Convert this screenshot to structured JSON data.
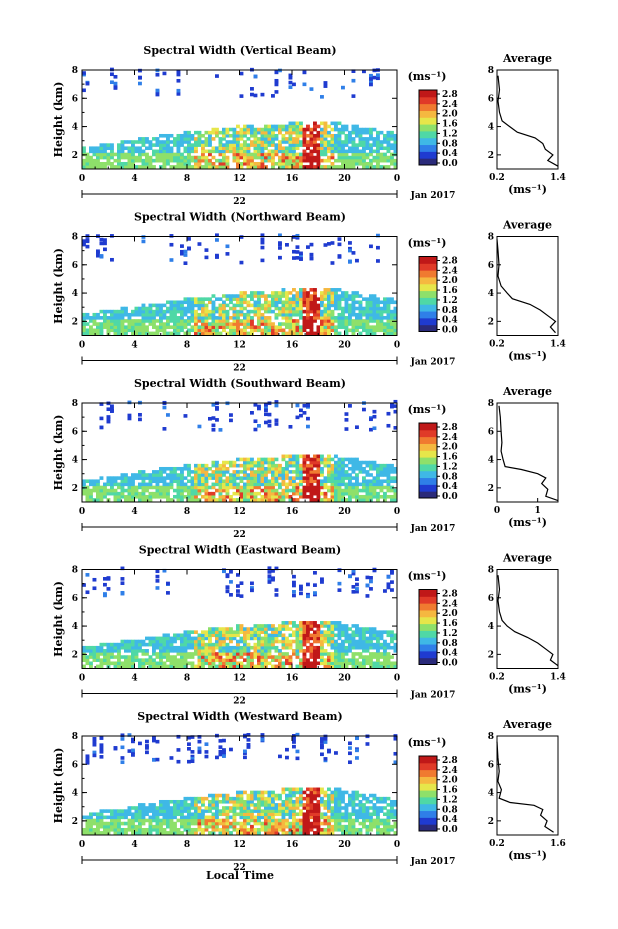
{
  "figure": {
    "xlabel_bottom": "Local Time",
    "date_label": "Jan 2017",
    "day_label": "22",
    "colorbar_title": "(ms⁻¹)",
    "colorbar_ticks": [
      "2.8",
      "2.4",
      "2.0",
      "1.6",
      "1.2",
      "0.8",
      "0.4",
      "0.0"
    ],
    "colors": {
      "scale": [
        "#2a2a7a",
        "#1f3bd0",
        "#2f7fe8",
        "#3fb8e6",
        "#4fd8a6",
        "#8ee06a",
        "#e6e64a",
        "#f5b840",
        "#f07a30",
        "#e03a28",
        "#c01818"
      ]
    }
  },
  "chart_data": [
    {
      "type": "heatmap",
      "title": "Spectral Width (Vertical Beam)",
      "ylabel": "Height (km)",
      "x_ticks": [
        "0",
        "4",
        "8",
        "12",
        "16",
        "20",
        "0"
      ],
      "xlim": [
        0,
        24
      ],
      "y_ticks": [
        "2",
        "4",
        "6",
        "8"
      ],
      "ylim": [
        1,
        8
      ],
      "profile": {
        "title": "Average",
        "xlabel": "(ms⁻¹)",
        "x_ticks": [
          "0.2",
          "1.4"
        ],
        "xlim": [
          0.2,
          1.4
        ],
        "y_ticks": [
          "2",
          "4",
          "6",
          "8"
        ],
        "ylim": [
          1,
          8
        ],
        "points": [
          [
            1.4,
            1.2
          ],
          [
            1.2,
            1.6
          ],
          [
            1.3,
            2.0
          ],
          [
            1.15,
            2.4
          ],
          [
            1.1,
            2.8
          ],
          [
            0.95,
            3.2
          ],
          [
            0.6,
            3.6
          ],
          [
            0.45,
            4.0
          ],
          [
            0.3,
            4.4
          ],
          [
            0.25,
            5.0
          ],
          [
            0.22,
            5.8
          ],
          [
            0.25,
            6.6
          ],
          [
            0.22,
            7.6
          ]
        ]
      }
    },
    {
      "type": "heatmap",
      "title": "Spectral Width (Northward Beam)",
      "ylabel": "Height (km)",
      "x_ticks": [
        "0",
        "4",
        "8",
        "12",
        "16",
        "20",
        "0"
      ],
      "xlim": [
        0,
        24
      ],
      "y_ticks": [
        "2",
        "4",
        "6",
        "8"
      ],
      "ylim": [
        1,
        8
      ],
      "profile": {
        "title": "Average",
        "xlabel": "(ms⁻¹)",
        "x_ticks": [
          "0.2",
          "1.4"
        ],
        "xlim": [
          0.2,
          1.4
        ],
        "y_ticks": [
          "2",
          "4",
          "6",
          "8"
        ],
        "ylim": [
          1,
          8
        ],
        "points": [
          [
            1.35,
            1.2
          ],
          [
            1.25,
            1.6
          ],
          [
            1.35,
            2.0
          ],
          [
            1.2,
            2.4
          ],
          [
            1.05,
            2.8
          ],
          [
            0.85,
            3.2
          ],
          [
            0.5,
            3.6
          ],
          [
            0.4,
            4.0
          ],
          [
            0.28,
            4.5
          ],
          [
            0.22,
            5.2
          ],
          [
            0.24,
            6.0
          ],
          [
            0.22,
            7.0
          ],
          [
            0.2,
            7.8
          ]
        ]
      }
    },
    {
      "type": "heatmap",
      "title": "Spectral Width (Southward Beam)",
      "ylabel": "Height (km)",
      "x_ticks": [
        "0",
        "4",
        "8",
        "12",
        "16",
        "20",
        "0"
      ],
      "xlim": [
        0,
        24
      ],
      "y_ticks": [
        "2",
        "4",
        "6",
        "8"
      ],
      "ylim": [
        1,
        8
      ],
      "profile": {
        "title": "Average",
        "xlabel": "(ms⁻¹)",
        "x_ticks": [
          "0",
          "1"
        ],
        "xlim": [
          0,
          1.5
        ],
        "y_ticks": [
          "2",
          "4",
          "6",
          "8"
        ],
        "ylim": [
          1,
          8
        ],
        "points": [
          [
            1.5,
            1.1
          ],
          [
            1.2,
            1.4
          ],
          [
            1.25,
            1.9
          ],
          [
            1.1,
            2.3
          ],
          [
            1.2,
            2.7
          ],
          [
            1.0,
            3.0
          ],
          [
            0.6,
            3.3
          ],
          [
            0.2,
            3.5
          ],
          [
            0.15,
            4.0
          ],
          [
            0.1,
            4.6
          ],
          [
            0.12,
            5.2
          ],
          [
            0.1,
            6.0
          ],
          [
            0.08,
            7.0
          ],
          [
            0.05,
            7.8
          ]
        ]
      }
    },
    {
      "type": "heatmap",
      "title": "Spectral Width (Eastward Beam)",
      "ylabel": "Height (km)",
      "x_ticks": [
        "0",
        "4",
        "8",
        "12",
        "16",
        "20",
        "0"
      ],
      "xlim": [
        0,
        24
      ],
      "y_ticks": [
        "2",
        "4",
        "6",
        "8"
      ],
      "ylim": [
        1,
        8
      ],
      "profile": {
        "title": "Average",
        "xlabel": "(ms⁻¹)",
        "x_ticks": [
          "0.2",
          "1.4"
        ],
        "xlim": [
          0.2,
          1.4
        ],
        "y_ticks": [
          "2",
          "4",
          "6",
          "8"
        ],
        "ylim": [
          1,
          8
        ],
        "points": [
          [
            1.4,
            1.2
          ],
          [
            1.25,
            1.6
          ],
          [
            1.3,
            2.0
          ],
          [
            1.15,
            2.4
          ],
          [
            1.0,
            2.8
          ],
          [
            0.8,
            3.2
          ],
          [
            0.55,
            3.6
          ],
          [
            0.4,
            4.0
          ],
          [
            0.3,
            4.4
          ],
          [
            0.25,
            5.0
          ],
          [
            0.22,
            5.8
          ],
          [
            0.25,
            6.6
          ],
          [
            0.22,
            7.6
          ]
        ]
      }
    },
    {
      "type": "heatmap",
      "title": "Spectral Width (Westward Beam)",
      "ylabel": "Height (km)",
      "x_ticks": [
        "0",
        "4",
        "8",
        "12",
        "16",
        "20",
        "0"
      ],
      "xlim": [
        0,
        24
      ],
      "y_ticks": [
        "2",
        "4",
        "6",
        "8"
      ],
      "ylim": [
        1,
        8
      ],
      "profile": {
        "title": "Average",
        "xlabel": "(ms⁻¹)",
        "x_ticks": [
          "0.2",
          "1.6"
        ],
        "xlim": [
          0.2,
          1.6
        ],
        "y_ticks": [
          "2",
          "4",
          "6",
          "8"
        ],
        "ylim": [
          1,
          8
        ],
        "points": [
          [
            1.5,
            1.2
          ],
          [
            1.3,
            1.6
          ],
          [
            1.35,
            2.0
          ],
          [
            1.2,
            2.4
          ],
          [
            1.25,
            2.8
          ],
          [
            1.05,
            3.1
          ],
          [
            0.5,
            3.3
          ],
          [
            0.25,
            3.6
          ],
          [
            0.3,
            4.2
          ],
          [
            0.22,
            4.8
          ],
          [
            0.25,
            5.5
          ],
          [
            0.22,
            6.5
          ],
          [
            0.2,
            7.6
          ]
        ]
      }
    }
  ]
}
